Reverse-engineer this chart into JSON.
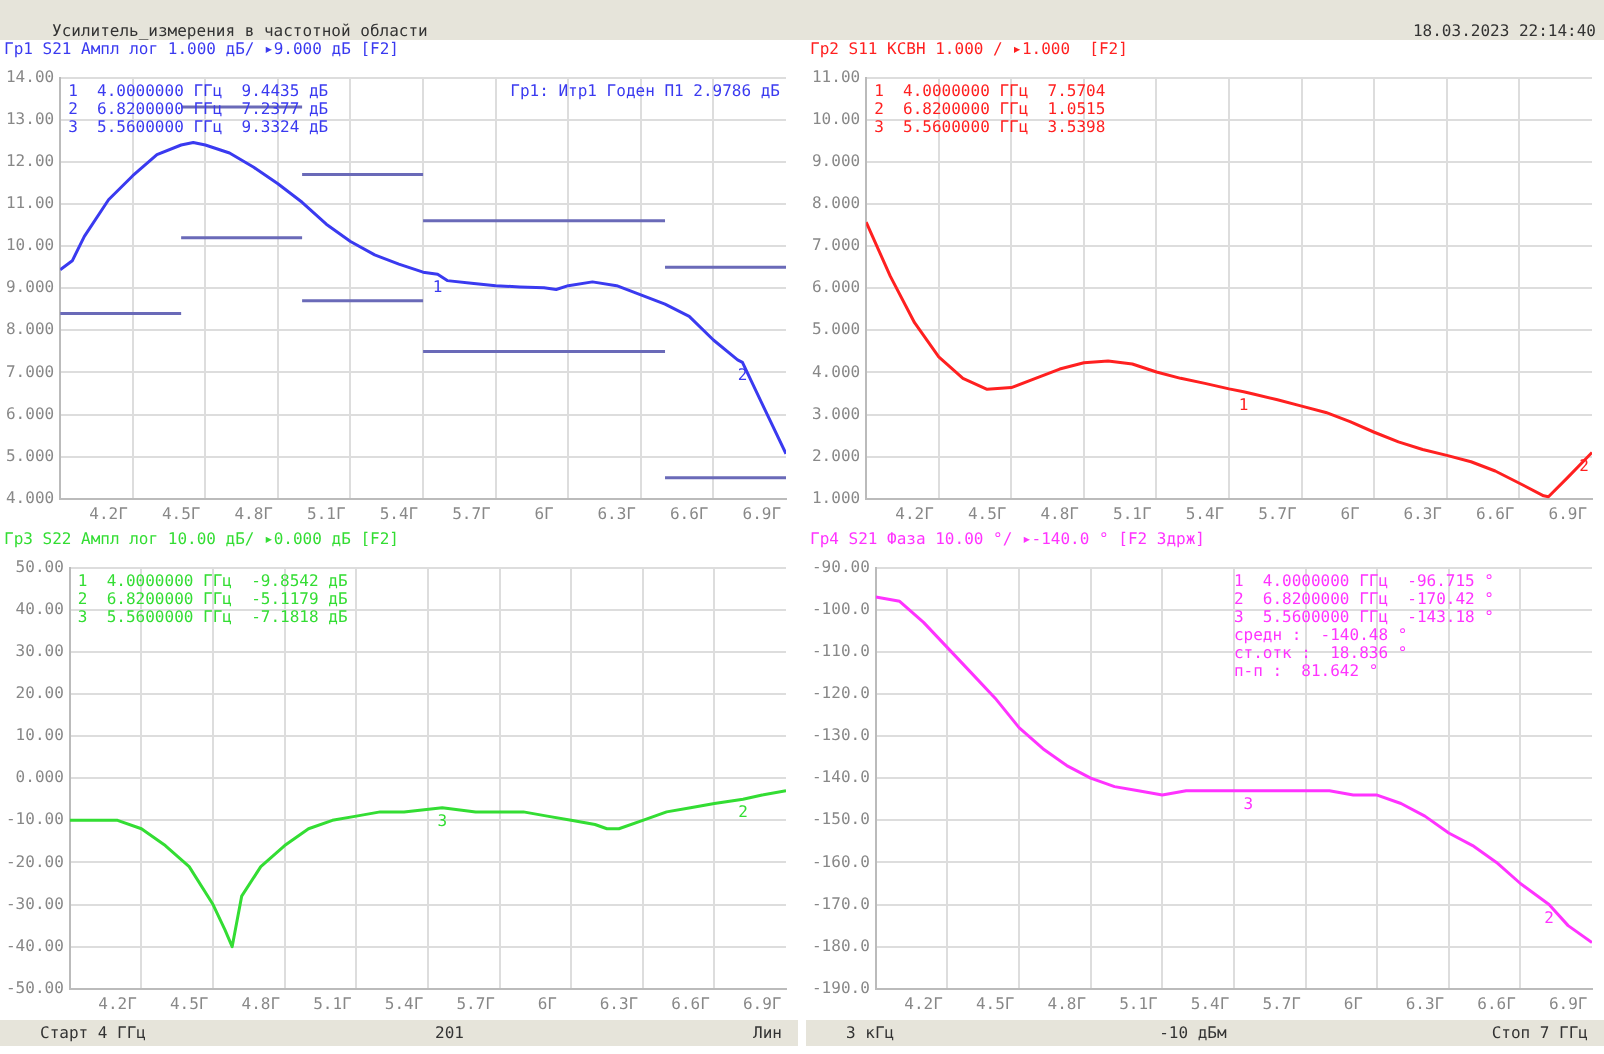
{
  "chart_data": [
    {
      "type": "line",
      "title": "Усилитель_измерения в частотной области",
      "subtitle": "Гр1 S21 Ампл лог 1.000 дБ/ ▸9.000 дБ [F2]",
      "x": [
        4.0,
        4.05,
        4.1,
        4.2,
        4.3,
        4.4,
        4.5,
        4.55,
        4.6,
        4.7,
        4.8,
        4.9,
        5.0,
        5.1,
        5.2,
        5.3,
        5.4,
        5.5,
        5.56,
        5.6,
        5.7,
        5.8,
        5.9,
        6.0,
        6.05,
        6.1,
        6.2,
        6.3,
        6.4,
        6.5,
        6.6,
        6.7,
        6.8,
        6.82,
        6.9,
        7.0
      ],
      "series": [
        {
          "color": "#3a3af0",
          "values": [
            9.44,
            9.65,
            10.23,
            11.1,
            11.67,
            12.17,
            12.4,
            12.46,
            12.4,
            12.21,
            11.87,
            11.48,
            11.04,
            10.52,
            10.11,
            9.79,
            9.57,
            9.38,
            9.33,
            9.18,
            9.12,
            9.06,
            9.03,
            9.01,
            8.97,
            9.06,
            9.15,
            9.06,
            8.84,
            8.62,
            8.33,
            7.77,
            7.3,
            7.24,
            6.27,
            5.07
          ]
        },
        {
          "color": "#6a6ab8",
          "x": [
            4.0,
            4.5
          ],
          "values": [
            8.4,
            8.4
          ]
        },
        {
          "color": "#6a6ab8",
          "x": [
            4.5,
            5.0
          ],
          "values": [
            10.2,
            10.2
          ]
        },
        {
          "color": "#6a6ab8",
          "x": [
            5.0,
            5.5
          ],
          "values": [
            8.7,
            8.7
          ]
        },
        {
          "color": "#6a6ab8",
          "x": [
            5.5,
            6.5
          ],
          "values": [
            7.5,
            7.5
          ]
        },
        {
          "color": "#6a6ab8",
          "x": [
            6.5,
            7.0
          ],
          "values": [
            4.5,
            4.5
          ]
        },
        {
          "color": "#6a6ab8",
          "x": [
            4.5,
            5.0
          ],
          "values": [
            13.3,
            13.3
          ]
        },
        {
          "color": "#6a6ab8",
          "x": [
            5.0,
            5.5
          ],
          "values": [
            11.7,
            11.7
          ]
        },
        {
          "color": "#6a6ab8",
          "x": [
            5.5,
            6.5
          ],
          "values": [
            10.6,
            10.6
          ]
        },
        {
          "color": "#6a6ab8",
          "x": [
            6.5,
            7.0
          ],
          "values": [
            9.5,
            9.5
          ]
        }
      ],
      "xlim": [
        4,
        7
      ],
      "xticks": [
        {
          "value": 4.2,
          "label": "4.2Г"
        },
        {
          "value": 4.3,
          "label": null
        },
        {
          "value": 4.5,
          "label": "4.5Г"
        },
        {
          "value": 4.6,
          "label": null
        },
        {
          "value": 4.8,
          "label": "4.8Г"
        },
        {
          "value": 4.9,
          "label": null
        },
        {
          "value": 5.1,
          "label": "5.1Г"
        },
        {
          "value": 5.2,
          "label": null
        },
        {
          "value": 5.4,
          "label": "5.4Г"
        },
        {
          "value": 5.5,
          "label": null
        },
        {
          "value": 5.7,
          "label": "5.7Г"
        },
        {
          "value": 5.8,
          "label": null
        },
        {
          "value": 6.0,
          "label": "6Г"
        },
        {
          "value": 6.1,
          "label": null
        },
        {
          "value": 6.3,
          "label": "6.3Г"
        },
        {
          "value": 6.4,
          "label": null
        },
        {
          "value": 6.6,
          "label": "6.6Г"
        },
        {
          "value": 6.7,
          "label": null
        },
        {
          "value": 6.9,
          "label": "6.9Г"
        }
      ],
      "ylim": [
        4,
        14
      ],
      "yticks": [
        {
          "value": 4,
          "label": "4.000"
        },
        {
          "value": 5,
          "label": "5.000"
        },
        {
          "value": 6,
          "label": "6.000"
        },
        {
          "value": 7,
          "label": "7.000"
        },
        {
          "value": 8,
          "label": "8.000"
        },
        {
          "value": 9,
          "label": "9.000"
        },
        {
          "value": 10,
          "label": "10.00"
        },
        {
          "value": 11,
          "label": "11.00"
        },
        {
          "value": 12,
          "label": "12.00"
        },
        {
          "value": 13,
          "label": "13.00"
        },
        {
          "value": 14,
          "label": "14.00"
        }
      ],
      "grid": true,
      "legend": false,
      "marker": "none",
      "annotations": [
        "1  4.0000000 ГГц  9.4435 дБ",
        "2  6.8200000 ГГц  7.2377 дБ",
        "3  5.5600000 ГГц  9.3324 дБ",
        "Гр1: Итр1 Годен П1 2.9786 дБ",
        {
          "text": "1",
          "x": 5.56,
          "y": 9.33
        },
        {
          "text": "2",
          "x": 6.82,
          "y": 7.24
        }
      ]
    },
    {
      "type": "line",
      "title": "18.03.2023 22:14:40",
      "subtitle": "Гр2 S11 КСВН 1.000 / ▸1.000  [F2]",
      "x": [
        4.0,
        4.1,
        4.2,
        4.3,
        4.4,
        4.5,
        4.6,
        4.7,
        4.8,
        4.9,
        5.0,
        5.1,
        5.2,
        5.3,
        5.4,
        5.5,
        5.56,
        5.6,
        5.7,
        5.8,
        5.9,
        6.0,
        6.1,
        6.2,
        6.3,
        6.4,
        6.5,
        6.6,
        6.7,
        6.8,
        6.82,
        6.9,
        7.0
      ],
      "series": [
        {
          "color": "#ff2020",
          "values": [
            7.57,
            6.28,
            5.18,
            4.37,
            3.86,
            3.6,
            3.64,
            3.86,
            4.08,
            4.23,
            4.27,
            4.2,
            4.01,
            3.86,
            3.74,
            3.61,
            3.54,
            3.49,
            3.35,
            3.2,
            3.05,
            2.83,
            2.58,
            2.35,
            2.17,
            2.03,
            1.88,
            1.66,
            1.37,
            1.07,
            1.05,
            1.51,
            2.1
          ]
        }
      ],
      "xlim": [
        4,
        7
      ],
      "xticks": [
        {
          "value": 4.2,
          "label": "4.2Г"
        },
        {
          "value": 4.3,
          "label": null
        },
        {
          "value": 4.5,
          "label": "4.5Г"
        },
        {
          "value": 4.6,
          "label": null
        },
        {
          "value": 4.8,
          "label": "4.8Г"
        },
        {
          "value": 4.9,
          "label": null
        },
        {
          "value": 5.1,
          "label": "5.1Г"
        },
        {
          "value": 5.2,
          "label": null
        },
        {
          "value": 5.4,
          "label": "5.4Г"
        },
        {
          "value": 5.5,
          "label": null
        },
        {
          "value": 5.7,
          "label": "5.7Г"
        },
        {
          "value": 5.8,
          "label": null
        },
        {
          "value": 6.0,
          "label": "6Г"
        },
        {
          "value": 6.1,
          "label": null
        },
        {
          "value": 6.3,
          "label": "6.3Г"
        },
        {
          "value": 6.4,
          "label": null
        },
        {
          "value": 6.6,
          "label": "6.6Г"
        },
        {
          "value": 6.7,
          "label": null
        },
        {
          "value": 6.9,
          "label": "6.9Г"
        }
      ],
      "ylim": [
        1,
        11
      ],
      "yticks": [
        {
          "value": 1,
          "label": "1.000"
        },
        {
          "value": 2,
          "label": "2.000"
        },
        {
          "value": 3,
          "label": "3.000"
        },
        {
          "value": 4,
          "label": "4.000"
        },
        {
          "value": 5,
          "label": "5.000"
        },
        {
          "value": 6,
          "label": "6.000"
        },
        {
          "value": 7,
          "label": "7.000"
        },
        {
          "value": 8,
          "label": "8.000"
        },
        {
          "value": 9,
          "label": "9.000"
        },
        {
          "value": 10,
          "label": "10.00"
        },
        {
          "value": 11,
          "label": "11.00"
        }
      ],
      "grid": true,
      "legend": false,
      "marker": "none",
      "annotations": [
        "1  4.0000000 ГГц  7.5704",
        "2  6.8200000 ГГц  1.0515",
        "3  5.5600000 ГГц  3.5398",
        {
          "text": "1",
          "x": 5.56,
          "y": 3.54
        },
        {
          "text": "2",
          "x": 7.0,
          "y": 2.1
        }
      ]
    },
    {
      "type": "line",
      "subtitle": "Гр3 S22 Ампл лог 10.00 дБ/ ▸0.000 дБ [F2]",
      "xlabel": "Старт 4 ГГц   201   Лин",
      "x": [
        4.0,
        4.2,
        4.3,
        4.4,
        4.5,
        4.6,
        4.65,
        4.68,
        4.72,
        4.8,
        4.9,
        5.0,
        5.1,
        5.2,
        5.3,
        5.4,
        5.56,
        5.7,
        5.8,
        5.9,
        6.0,
        6.1,
        6.2,
        6.25,
        6.3,
        6.4,
        6.5,
        6.6,
        6.7,
        6.82,
        6.9,
        7.0
      ],
      "series": [
        {
          "color": "#33dd33",
          "values": [
            -10,
            -10,
            -12,
            -16,
            -21,
            -30,
            -36,
            -40,
            -28,
            -21,
            -16,
            -12,
            -10,
            -9,
            -8,
            -8,
            -7,
            -8,
            -8,
            -8,
            -9,
            -10,
            -11,
            -12,
            -12,
            -10,
            -8,
            -7,
            -6,
            -5,
            -4,
            -3
          ]
        }
      ],
      "xlim": [
        4,
        7
      ],
      "xticks": [
        {
          "value": 4.2,
          "label": "4.2Г"
        },
        {
          "value": 4.3,
          "label": null
        },
        {
          "value": 4.5,
          "label": "4.5Г"
        },
        {
          "value": 4.6,
          "label": null
        },
        {
          "value": 4.8,
          "label": "4.8Г"
        },
        {
          "value": 4.9,
          "label": null
        },
        {
          "value": 5.1,
          "label": "5.1Г"
        },
        {
          "value": 5.2,
          "label": null
        },
        {
          "value": 5.4,
          "label": "5.4Г"
        },
        {
          "value": 5.5,
          "label": null
        },
        {
          "value": 5.7,
          "label": "5.7Г"
        },
        {
          "value": 5.8,
          "label": null
        },
        {
          "value": 6.0,
          "label": "6Г"
        },
        {
          "value": 6.1,
          "label": null
        },
        {
          "value": 6.3,
          "label": "6.3Г"
        },
        {
          "value": 6.4,
          "label": null
        },
        {
          "value": 6.6,
          "label": "6.6Г"
        },
        {
          "value": 6.7,
          "label": null
        },
        {
          "value": 6.9,
          "label": "6.9Г"
        }
      ],
      "ylim": [
        -50,
        50
      ],
      "yticks": [
        {
          "value": -50,
          "label": "-50.00"
        },
        {
          "value": -40,
          "label": "-40.00"
        },
        {
          "value": -30,
          "label": "-30.00"
        },
        {
          "value": -20,
          "label": "-20.00"
        },
        {
          "value": -10,
          "label": "-10.00"
        },
        {
          "value": 0,
          "label": "0.000"
        },
        {
          "value": 10,
          "label": "10.00"
        },
        {
          "value": 20,
          "label": "20.00"
        },
        {
          "value": 30,
          "label": "30.00"
        },
        {
          "value": 40,
          "label": "40.00"
        },
        {
          "value": 50,
          "label": "50.00"
        }
      ],
      "grid": true,
      "legend": false,
      "marker": "none",
      "annotations": [
        "1  4.0000000 ГГц  -9.8542 дБ",
        "2  6.8200000 ГГц  -5.1179 дБ",
        "3  5.5600000 ГГц  -7.1818 дБ",
        {
          "text": "3",
          "x": 5.56,
          "y": -7
        },
        {
          "text": "2",
          "x": 6.82,
          "y": -5
        }
      ]
    },
    {
      "type": "line",
      "subtitle": "Гр4 S21 Фаза 10.00 °/ ▸-140.0 ° [F2 Здрж]",
      "xlabel": "3 кГц   -10 дБм   Стоп 7 ГГц",
      "x": [
        4.0,
        4.1,
        4.2,
        4.3,
        4.4,
        4.5,
        4.6,
        4.7,
        4.8,
        4.9,
        5.0,
        5.1,
        5.2,
        5.3,
        5.4,
        5.56,
        5.7,
        5.8,
        5.9,
        6.0,
        6.1,
        6.2,
        6.3,
        6.4,
        6.5,
        6.6,
        6.7,
        6.82,
        6.9,
        7.0
      ],
      "series": [
        {
          "color": "#ff33ff",
          "values": [
            -97,
            -98,
            -103,
            -109,
            -115,
            -121,
            -128,
            -133,
            -137,
            -140,
            -142,
            -143,
            -144,
            -143,
            -143,
            -143,
            -143,
            -143,
            -143,
            -144,
            -144,
            -146,
            -149,
            -153,
            -156,
            -160,
            -165,
            -170,
            -175,
            -179
          ]
        }
      ],
      "xlim": [
        4,
        7
      ],
      "xticks": [
        {
          "value": 4.2,
          "label": "4.2Г"
        },
        {
          "value": 4.3,
          "label": null
        },
        {
          "value": 4.5,
          "label": "4.5Г"
        },
        {
          "value": 4.6,
          "label": null
        },
        {
          "value": 4.8,
          "label": "4.8Г"
        },
        {
          "value": 4.9,
          "label": null
        },
        {
          "value": 5.1,
          "label": "5.1Г"
        },
        {
          "value": 5.2,
          "label": null
        },
        {
          "value": 5.4,
          "label": "5.4Г"
        },
        {
          "value": 5.5,
          "label": null
        },
        {
          "value": 5.7,
          "label": "5.7Г"
        },
        {
          "value": 5.8,
          "label": null
        },
        {
          "value": 6.0,
          "label": "6Г"
        },
        {
          "value": 6.1,
          "label": null
        },
        {
          "value": 6.3,
          "label": "6.3Г"
        },
        {
          "value": 6.4,
          "label": null
        },
        {
          "value": 6.6,
          "label": "6.6Г"
        },
        {
          "value": 6.7,
          "label": null
        },
        {
          "value": 6.9,
          "label": "6.9Г"
        }
      ],
      "ylim": [
        -190,
        -90
      ],
      "yticks": [
        {
          "value": -190,
          "label": "-190.0"
        },
        {
          "value": -180,
          "label": "-180.0"
        },
        {
          "value": -170,
          "label": "-170.0"
        },
        {
          "value": -160,
          "label": "-160.0"
        },
        {
          "value": -150,
          "label": "-150.0"
        },
        {
          "value": -140,
          "label": "-140.0"
        },
        {
          "value": -130,
          "label": "-130.0"
        },
        {
          "value": -120,
          "label": "-120.0"
        },
        {
          "value": -110,
          "label": "-110.0"
        },
        {
          "value": -100,
          "label": "-100.0"
        },
        {
          "value": -90,
          "label": "-90.00"
        }
      ],
      "grid": true,
      "legend": false,
      "marker": "none",
      "annotations": [
        "1  4.0000000 ГГц  -96.715 °",
        "2  6.8200000 ГГц  -170.42 °",
        "3  5.5600000 ГГц  -143.18 °",
        "средн :  -140.48 °",
        "ст.отк :  18.836 °",
        "п-п :  81.642 °",
        {
          "text": "3",
          "x": 5.56,
          "y": -143
        },
        {
          "text": "2",
          "x": 6.82,
          "y": -170
        }
      ]
    }
  ]
}
